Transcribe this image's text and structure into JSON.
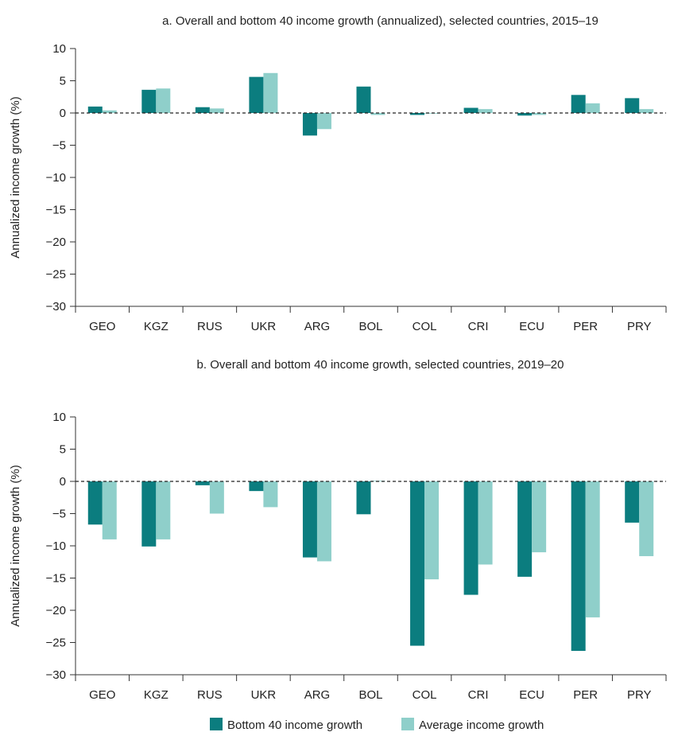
{
  "colors": {
    "bottom40": "#0b7d7f",
    "average": "#8fcfca",
    "axis": "#333333",
    "zero_line": "#222222"
  },
  "legend": {
    "placement": "bottom-center",
    "items": [
      {
        "label": "Bottom 40 income growth",
        "color": "#0b7d7f"
      },
      {
        "label": "Average income growth",
        "color": "#8fcfca"
      }
    ]
  },
  "chart_data": [
    {
      "type": "bar",
      "title": "a. Overall and bottom 40 income growth (annualized), selected countries, 2015–19",
      "xlabel": "",
      "ylabel": "Annualized income growth (%)",
      "ylim": [
        -30,
        10
      ],
      "yticks": [
        10,
        5,
        0,
        -5,
        -10,
        -15,
        -20,
        -25,
        -30
      ],
      "ytick_labels": [
        "10",
        "5",
        "0",
        "−5",
        "−10",
        "−15",
        "−20",
        "−25",
        "−30"
      ],
      "zero_line": "dashed",
      "grid": false,
      "categories": [
        "GEO",
        "KGZ",
        "RUS",
        "UKR",
        "ARG",
        "BOL",
        "COL",
        "CRI",
        "ECU",
        "PER",
        "PRY"
      ],
      "series": [
        {
          "name": "Bottom 40 income growth",
          "values": [
            1.0,
            3.6,
            0.9,
            5.6,
            -3.5,
            4.1,
            -0.3,
            0.8,
            -0.4,
            2.8,
            2.3
          ]
        },
        {
          "name": "Average income growth",
          "values": [
            0.4,
            3.8,
            0.7,
            6.2,
            -2.5,
            -0.3,
            0.0,
            0.6,
            -0.3,
            1.5,
            0.6
          ]
        }
      ]
    },
    {
      "type": "bar",
      "title": "b. Overall and bottom 40 income growth, selected countries, 2019–20",
      "xlabel": "",
      "ylabel": "Annualized income growth (%)",
      "ylim": [
        -30,
        10
      ],
      "yticks": [
        10,
        5,
        0,
        -5,
        -10,
        -15,
        -20,
        -25,
        -30
      ],
      "ytick_labels": [
        "10",
        "5",
        "0",
        "−5",
        "−10",
        "−15",
        "−20",
        "−25",
        "−30"
      ],
      "zero_line": "dashed",
      "grid": false,
      "categories": [
        "GEO",
        "KGZ",
        "RUS",
        "UKR",
        "ARG",
        "BOL",
        "COL",
        "CRI",
        "ECU",
        "PER",
        "PRY"
      ],
      "series": [
        {
          "name": "Bottom 40 income growth",
          "values": [
            -6.7,
            -10.1,
            -0.6,
            -1.5,
            -11.8,
            -5.1,
            -25.5,
            -17.6,
            -14.8,
            -26.3,
            -6.4
          ]
        },
        {
          "name": "Average income growth",
          "values": [
            -9.0,
            -9.0,
            -5.0,
            -4.0,
            -12.4,
            0.1,
            -15.2,
            -12.9,
            -11.0,
            -21.1,
            -11.6
          ]
        }
      ]
    }
  ]
}
